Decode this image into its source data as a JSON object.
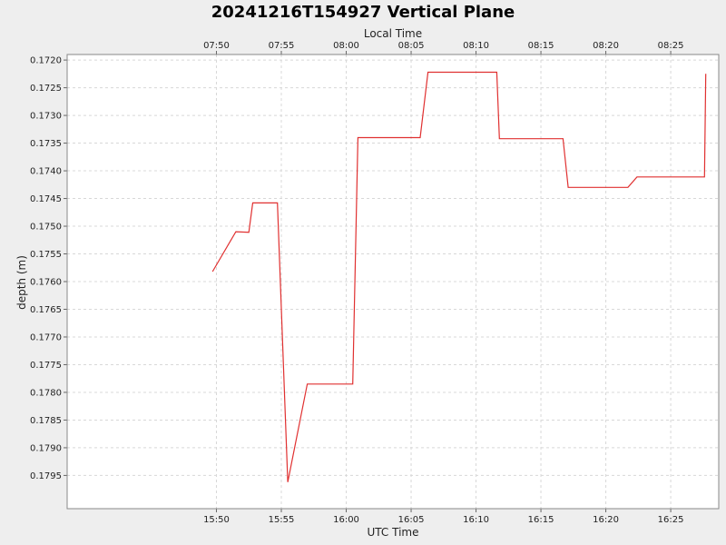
{
  "chart_data": {
    "type": "line",
    "title": "20241216T154927 Vertical Plane",
    "xlabel": "UTC Time",
    "x2label": "Local Time",
    "ylabel": "depth (m)",
    "ylim": [
      0.1801,
      0.1719
    ],
    "y_inverted": true,
    "xlim_minutes": [
      938.5,
      988.7
    ],
    "grid": true,
    "legend": "none",
    "x_ticks": [
      {
        "m": 950,
        "label": "15:50"
      },
      {
        "m": 955,
        "label": "15:55"
      },
      {
        "m": 960,
        "label": "16:00"
      },
      {
        "m": 965,
        "label": "16:05"
      },
      {
        "m": 970,
        "label": "16:10"
      },
      {
        "m": 975,
        "label": "16:15"
      },
      {
        "m": 980,
        "label": "16:20"
      },
      {
        "m": 985,
        "label": "16:25"
      }
    ],
    "x2_ticks": [
      {
        "m": 950,
        "label": "07:50"
      },
      {
        "m": 955,
        "label": "07:55"
      },
      {
        "m": 960,
        "label": "08:00"
      },
      {
        "m": 965,
        "label": "08:05"
      },
      {
        "m": 970,
        "label": "08:10"
      },
      {
        "m": 975,
        "label": "08:15"
      },
      {
        "m": 980,
        "label": "08:20"
      },
      {
        "m": 985,
        "label": "08:25"
      }
    ],
    "y_ticks": [
      "0.1720",
      "0.1725",
      "0.1730",
      "0.1735",
      "0.1740",
      "0.1745",
      "0.1750",
      "0.1755",
      "0.1760",
      "0.1765",
      "0.1770",
      "0.1775",
      "0.1780",
      "0.1785",
      "0.1790",
      "0.1795"
    ],
    "series": [
      {
        "color": "#e03030",
        "x": [
          "15:49:42",
          "15:51:30",
          "15:52:30",
          "15:52:48",
          "15:54:42",
          "15:55:30",
          "15:57:00",
          "16:00:30",
          "16:00:54",
          "16:05:42",
          "16:06:18",
          "16:11:36",
          "16:11:48",
          "16:16:42",
          "16:17:06",
          "16:21:42",
          "16:22:24",
          "16:27:36",
          "16:27:42"
        ],
        "y": [
          0.17582,
          0.1751,
          0.17511,
          0.17458,
          0.17458,
          0.17962,
          0.17785,
          0.17785,
          0.1734,
          0.1734,
          0.17222,
          0.17222,
          0.17342,
          0.17342,
          0.1743,
          0.1743,
          0.17411,
          0.17411,
          0.17225
        ]
      }
    ]
  }
}
